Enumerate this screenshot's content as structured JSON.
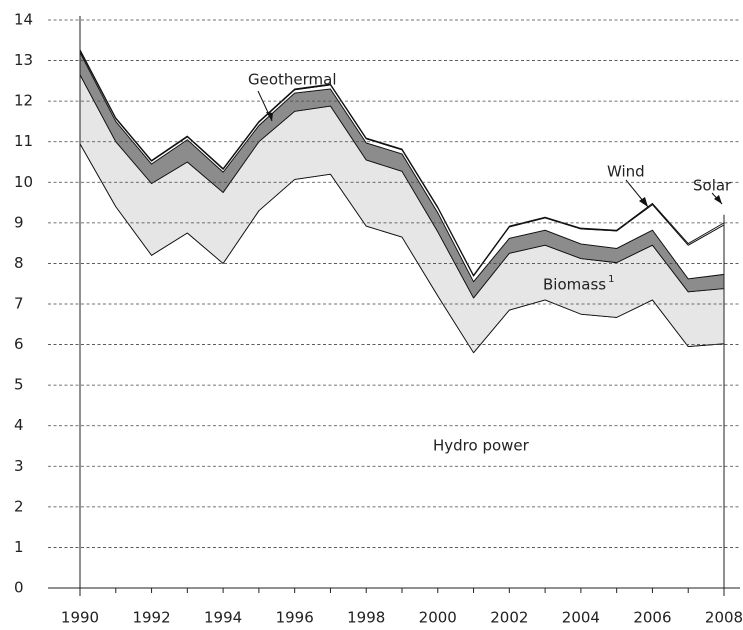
{
  "chart_data": {
    "type": "stacked_area",
    "x": [
      1990,
      1991,
      1992,
      1993,
      1994,
      1995,
      1996,
      1997,
      1998,
      1999,
      2000,
      2001,
      2002,
      2003,
      2004,
      2005,
      2006,
      2007,
      2008
    ],
    "series": [
      {
        "name": "Hydro power",
        "color": "#ffffff",
        "values": [
          10.95,
          9.4,
          8.2,
          8.75,
          8.0,
          9.3,
          10.07,
          10.2,
          8.92,
          8.65,
          7.2,
          5.8,
          6.85,
          7.1,
          6.75,
          6.67,
          7.1,
          5.95,
          6.02
        ]
      },
      {
        "name": "Biomass",
        "color": "#e6e6e6",
        "values": [
          1.7,
          1.6,
          1.77,
          1.75,
          1.75,
          1.7,
          1.68,
          1.68,
          1.63,
          1.62,
          1.58,
          1.35,
          1.4,
          1.35,
          1.37,
          1.35,
          1.35,
          1.35,
          1.36
        ]
      },
      {
        "name": "Geothermal",
        "color": "#8c8c8c",
        "values": [
          0.55,
          0.5,
          0.48,
          0.55,
          0.5,
          0.4,
          0.45,
          0.42,
          0.42,
          0.43,
          0.47,
          0.4,
          0.37,
          0.37,
          0.36,
          0.35,
          0.37,
          0.32,
          0.35
        ]
      },
      {
        "name": "Wind",
        "color": "#ffffff",
        "values": [
          0.05,
          0.07,
          0.07,
          0.07,
          0.07,
          0.08,
          0.08,
          0.1,
          0.1,
          0.1,
          0.12,
          0.14,
          0.28,
          0.3,
          0.37,
          0.43,
          0.63,
          0.83,
          1.22
        ]
      },
      {
        "name": "Solar",
        "color": "#ffffff",
        "values": [
          0.02,
          0.02,
          0.02,
          0.02,
          0.02,
          0.02,
          0.02,
          0.02,
          0.02,
          0.02,
          0.02,
          0.02,
          0.02,
          0.02,
          0.02,
          0.02,
          0.03,
          0.04,
          0.05
        ]
      }
    ],
    "footnote_marker": "1",
    "xlim": [
      1990,
      2008
    ],
    "xticks": [
      1990,
      1992,
      1994,
      1996,
      1998,
      2000,
      2002,
      2004,
      2006,
      2008
    ],
    "ylim": [
      0,
      14
    ],
    "yticks": [
      0,
      1,
      2,
      3,
      4,
      5,
      6,
      7,
      8,
      9,
      10,
      11,
      12,
      13,
      14
    ],
    "grid": true
  }
}
